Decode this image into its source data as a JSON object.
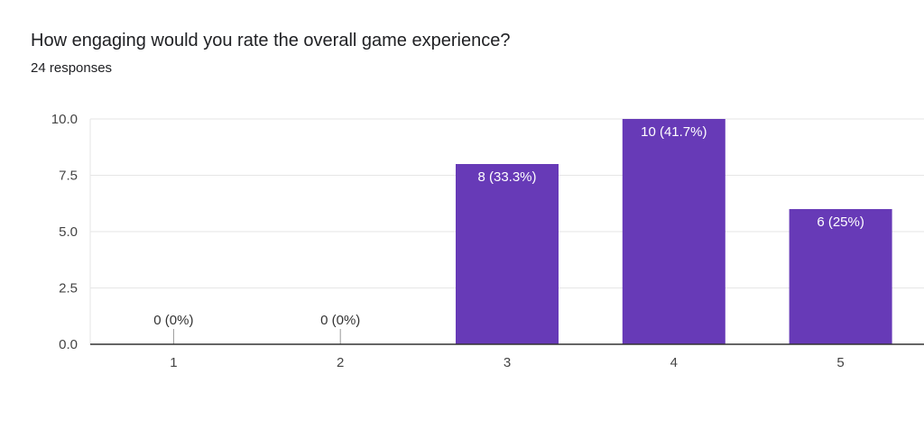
{
  "question": {
    "title": "How engaging would you rate the overall game experience?",
    "responses": "24 responses"
  },
  "chart_data": {
    "type": "bar",
    "categories": [
      "1",
      "2",
      "3",
      "4",
      "5"
    ],
    "values": [
      0,
      0,
      8,
      10,
      6
    ],
    "data_labels": [
      "0 (0%)",
      "0 (0%)",
      "8 (33.3%)",
      "10 (41.7%)",
      "6 (25%)"
    ],
    "ylim": [
      0,
      10
    ],
    "yticks": [
      0,
      2.5,
      5,
      7.5,
      10
    ],
    "ytick_labels": [
      "0.0",
      "2.5",
      "5.0",
      "7.5",
      "10.0"
    ],
    "grid": true,
    "legend": "none",
    "colors": {
      "bar": "#673ab7",
      "grid": "#e6e6e6",
      "axis": "#333333",
      "label_inside": "#ffffff",
      "label_outside": "#333333"
    }
  }
}
